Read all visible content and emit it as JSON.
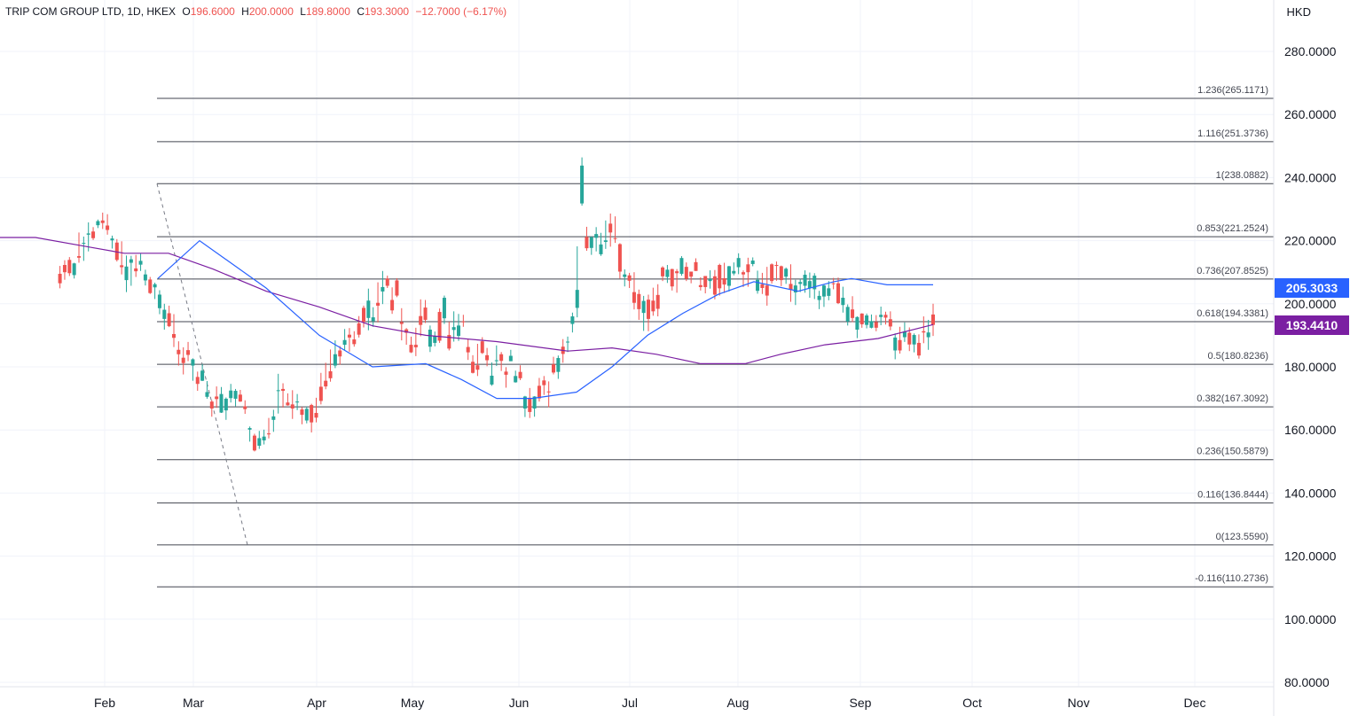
{
  "header": {
    "symbol": "TRIP COM GROUP LTD, 1D, HKEX",
    "open_label": "O",
    "open": "196.6000",
    "high_label": "H",
    "high": "200.0000",
    "low_label": "L",
    "low": "189.8000",
    "close_label": "C",
    "close": "193.3000",
    "change": "−12.7000 (−6.17%)"
  },
  "currency": "HKD",
  "badges": {
    "ma_fast": {
      "value": "205.3033",
      "color": "#2962ff"
    },
    "ma_slow": {
      "value": "193.4410",
      "color": "#7b1fa2"
    }
  },
  "colors": {
    "up": "#26a69a",
    "down": "#ef5350",
    "ma_fast": "#2962ff",
    "ma_slow": "#7b1fa2",
    "fib": "#434651",
    "grid": "#f0f3fa"
  },
  "chart_data": {
    "type": "candlestick",
    "ylim": [
      80,
      290
    ],
    "y_ticks": [
      "280.0000",
      "260.0000",
      "240.0000",
      "220.0000",
      "200.0000",
      "180.0000",
      "160.0000",
      "140.0000",
      "120.0000",
      "100.0000",
      "80.0000"
    ],
    "x_ticks": [
      "Feb",
      "Mar",
      "Apr",
      "May",
      "Jun",
      "Jul",
      "Aug",
      "Sep",
      "Oct",
      "Nov",
      "Dec"
    ],
    "fib_levels": [
      {
        "label": "1.236(265.1171)",
        "value": 265.1171
      },
      {
        "label": "1.116(251.3736)",
        "value": 251.3736
      },
      {
        "label": "1(238.0882)",
        "value": 238.0882
      },
      {
        "label": "0.853(221.2524)",
        "value": 221.2524
      },
      {
        "label": "0.736(207.8525)",
        "value": 207.8525
      },
      {
        "label": "0.618(194.3381)",
        "value": 194.3381
      },
      {
        "label": "0.5(180.8236)",
        "value": 180.8236
      },
      {
        "label": "0.382(167.3092)",
        "value": 167.3092
      },
      {
        "label": "0.236(150.5879)",
        "value": 150.5879
      },
      {
        "label": "0.116(136.8444)",
        "value": 136.8444
      },
      {
        "label": "0(123.5590)",
        "value": 123.559
      },
      {
        "label": "-0.116(110.2736)",
        "value": 110.2736
      }
    ],
    "trend_line": {
      "from": 238.0882,
      "to": 123.559
    },
    "ma_fast_anchors": [
      [
        178,
        208
      ],
      [
        225,
        220
      ],
      [
        300,
        205
      ],
      [
        360,
        190
      ],
      [
        420,
        180
      ],
      [
        480,
        181
      ],
      [
        520,
        176
      ],
      [
        560,
        170
      ],
      [
        600,
        170
      ],
      [
        650,
        172
      ],
      [
        690,
        180
      ],
      [
        730,
        190
      ],
      [
        770,
        197
      ],
      [
        810,
        203
      ],
      [
        850,
        207
      ],
      [
        900,
        204
      ],
      [
        940,
        207
      ],
      [
        960,
        208
      ],
      [
        1000,
        206
      ],
      [
        1052,
        206
      ]
    ],
    "ma_slow_anchors": [
      [
        0,
        221
      ],
      [
        40,
        221
      ],
      [
        100,
        218
      ],
      [
        140,
        216
      ],
      [
        190,
        216
      ],
      [
        240,
        211
      ],
      [
        300,
        204
      ],
      [
        360,
        199
      ],
      [
        420,
        193
      ],
      [
        480,
        190
      ],
      [
        560,
        188
      ],
      [
        640,
        185
      ],
      [
        690,
        186
      ],
      [
        740,
        184
      ],
      [
        790,
        181
      ],
      [
        840,
        181
      ],
      [
        880,
        184
      ],
      [
        930,
        187
      ],
      [
        990,
        189
      ],
      [
        1052,
        193.4
      ]
    ],
    "candles": [
      [
        196.6,
        200.0,
        189.8,
        193.3
      ],
      [
        189.4,
        194.9,
        185.4,
        190.9
      ],
      [
        191.3,
        196.0,
        187.5,
        190.9
      ],
      [
        187.6,
        190.3,
        182.6,
        183.6
      ],
      [
        187.1,
        190.6,
        184.6,
        190.1
      ],
      [
        190.8,
        192.5,
        185.0,
        187.1
      ],
      [
        189.4,
        194.1,
        187.9,
        191.2
      ],
      [
        188.5,
        192.7,
        184.2,
        185.2
      ],
      [
        185.2,
        190.6,
        182.4,
        189.3
      ],
      [
        195.1,
        197.6,
        191.6,
        192.8
      ],
      [
        196.5,
        197.5,
        193.4,
        195.6
      ],
      [
        195.8,
        199.1,
        193.2,
        196.5
      ],
      [
        194.2,
        196.4,
        191.3,
        192.4
      ],
      [
        192.4,
        196.6,
        192.2,
        194.5
      ],
      [
        193.3,
        196.9,
        192.2,
        196.3
      ],
      [
        196.9,
        197.0,
        192.4,
        193.5
      ],
      [
        191.8,
        196.0,
        189.1,
        195.8
      ],
      [
        198.2,
        202.4,
        194.2,
        195.5
      ],
      [
        194.4,
        199.8,
        193.1,
        199.0
      ],
      [
        199.6,
        205.4,
        197.2,
        201.9
      ],
      [
        206.5,
        208.3,
        199.9,
        200.2
      ],
      [
        206.5,
        208.2,
        204.6,
        206.3
      ],
      [
        202.5,
        207.2,
        201.1,
        204.9
      ],
      [
        202.3,
        206.1,
        199.0,
        205.8
      ],
      [
        201.2,
        204.1,
        198.3,
        202.5
      ],
      [
        204.6,
        209.7,
        201.5,
        208.9
      ],
      [
        205.0,
        209.9,
        201.9,
        207.2
      ],
      [
        205.7,
        210.6,
        203.5,
        209.2
      ],
      [
        206.3,
        207.9,
        203.7,
        206.9
      ],
      [
        203.6,
        207.6,
        199.6,
        205.8
      ],
      [
        206.3,
        212.5,
        200.6,
        204.4
      ],
      [
        208.6,
        211.5,
        206.3,
        211.1
      ],
      [
        211.9,
        212.1,
        205.6,
        207.5
      ],
      [
        212.3,
        213.4,
        207.3,
        212.0
      ],
      [
        212.5,
        212.8,
        206.4,
        207.2
      ],
      [
        205.8,
        211.7,
        199.4,
        202.6
      ],
      [
        206.2,
        209.8,
        203.1,
        205.0
      ],
      [
        204.1,
        210.5,
        203.2,
        207.6
      ],
      [
        212.6,
        214.7,
        211.9,
        213.7
      ],
      [
        212.5,
        214.6,
        205.4,
        210.0
      ],
      [
        210.0,
        210.6,
        205.3,
        209.3
      ],
      [
        211.6,
        216.0,
        209.4,
        214.5
      ],
      [
        209.6,
        213.1,
        209.0,
        210.4
      ],
      [
        205.7,
        212.0,
        203.9,
        211.9
      ],
      [
        208.1,
        213.0,
        203.4,
        206.1
      ],
      [
        212.3,
        212.7,
        202.6,
        204.9
      ],
      [
        208.7,
        210.7,
        201.4,
        202.9
      ],
      [
        207.2,
        210.6,
        204.8,
        207.8
      ],
      [
        208.8,
        208.8,
        203.3,
        205.3
      ],
      [
        205.9,
        208.4,
        204.2,
        205.3
      ],
      [
        213.2,
        214.4,
        210.4,
        210.4
      ],
      [
        210.2,
        210.2,
        206.5,
        208.6
      ],
      [
        211.7,
        213.1,
        207.2,
        207.9
      ],
      [
        209.5,
        215.1,
        208.9,
        214.5
      ],
      [
        210.3,
        211.0,
        203.5,
        209.7
      ],
      [
        211.0,
        211.1,
        204.2,
        205.5
      ],
      [
        208.5,
        212.3,
        206.6,
        210.8
      ],
      [
        211.5,
        211.9,
        207.2,
        208.7
      ],
      [
        202.8,
        206.2,
        196.0,
        198.4
      ],
      [
        201.0,
        205.1,
        196.2,
        197.6
      ],
      [
        201.3,
        202.9,
        191.3,
        195.2
      ],
      [
        197.1,
        202.5,
        191.4,
        200.9
      ],
      [
        203.1,
        204.5,
        194.9,
        198.3
      ],
      [
        203.7,
        210.0,
        198.2,
        200.3
      ],
      [
        209.0,
        209.8,
        205.0,
        207.3
      ],
      [
        208.5,
        210.9,
        205.5,
        209.3
      ],
      [
        218.9,
        219.2,
        208.0,
        210.2
      ],
      [
        220.8,
        227.7,
        219.3,
        220.6
      ],
      [
        225.4,
        228.6,
        218.1,
        222.6
      ],
      [
        219.6,
        226.4,
        217.4,
        220.1
      ],
      [
        215.7,
        222.5,
        215.2,
        218.8
      ],
      [
        220.9,
        224.3,
        216.6,
        222.1
      ],
      [
        217.7,
        221.4,
        215.5,
        221.1
      ],
      [
        221.2,
        224.4,
        216.8,
        217.6
      ],
      [
        231.8,
        246.4,
        231.1,
        243.8
      ],
      [
        198.7,
        218.2,
        195.7,
        204.4
      ],
      [
        193.6,
        197.2,
        190.9,
        196.0
      ],
      [
        188.0,
        189.6,
        184.7,
        188.0
      ],
      [
        186.4,
        188.8,
        181.3,
        184.1
      ],
      [
        178.4,
        183.6,
        176.2,
        182.8
      ],
      [
        180.8,
        183.2,
        177.6,
        178.2
      ],
      [
        172.2,
        175.4,
        167.2,
        172.1
      ],
      [
        175.7,
        177.1,
        171.1,
        174.2
      ],
      [
        174.0,
        176.5,
        169.0,
        170.0
      ],
      [
        166.8,
        170.7,
        164.2,
        170.6
      ],
      [
        170.2,
        173.3,
        163.8,
        165.7
      ],
      [
        166.8,
        170.8,
        164.1,
        170.6
      ],
      [
        178.4,
        180.5,
        175.8,
        176.4
      ],
      [
        175.1,
        178.8,
        175.0,
        177.1
      ],
      [
        181.8,
        185.4,
        181.8,
        183.5
      ],
      [
        178.5,
        179.9,
        173.4,
        177.5
      ],
      [
        184.0,
        184.7,
        178.7,
        181.9
      ],
      [
        182.0,
        186.8,
        180.3,
        182.1
      ],
      [
        174.4,
        181.4,
        174.0,
        177.2
      ],
      [
        183.7,
        186.0,
        180.2,
        182.1
      ],
      [
        188.1,
        189.4,
        184.1,
        184.4
      ],
      [
        180.5,
        187.3,
        177.1,
        179.1
      ],
      [
        181.6,
        183.7,
        177.9,
        178.1
      ],
      [
        186.3,
        188.8,
        182.2,
        184.6
      ],
      [
        194.4,
        196.5,
        192.7,
        194.2
      ],
      [
        189.8,
        196.8,
        188.2,
        193.1
      ],
      [
        191.7,
        197.6,
        188.0,
        192.6
      ],
      [
        190.1,
        194.3,
        185.2,
        185.8
      ],
      [
        195.4,
        202.6,
        193.6,
        201.9
      ],
      [
        197.4,
        198.5,
        187.6,
        188.3
      ],
      [
        187.6,
        191.2,
        186.5,
        189.8
      ],
      [
        186.4,
        193.1,
        184.7,
        191.8
      ],
      [
        198.8,
        201.2,
        193.9,
        194.9
      ],
      [
        196.1,
        201.4,
        189.7,
        193.3
      ],
      [
        187.0,
        192.4,
        183.4,
        186.2
      ],
      [
        187.0,
        189.6,
        184.4,
        184.6
      ],
      [
        191.9,
        192.3,
        187.0,
        190.8
      ],
      [
        194.2,
        198.6,
        188.4,
        193.6
      ],
      [
        207.4,
        208.1,
        202.1,
        202.6
      ],
      [
        201.2,
        205.2,
        196.8,
        197.9
      ],
      [
        208.0,
        208.9,
        205.0,
        205.7
      ],
      [
        203.9,
        210.4,
        199.9,
        205.3
      ],
      [
        200.3,
        206.8,
        194.1,
        199.4
      ],
      [
        194.5,
        198.9,
        192.7,
        195.7
      ],
      [
        195.5,
        204.8,
        191.6,
        201.0
      ],
      [
        198.7,
        199.4,
        192.5,
        194.2
      ],
      [
        193.8,
        196.1,
        189.3,
        190.2
      ],
      [
        188.7,
        191.3,
        186.4,
        187.2
      ],
      [
        190.2,
        192.3,
        184.8,
        189.3
      ],
      [
        187.0,
        192.0,
        185.3,
        188.5
      ],
      [
        185.2,
        186.6,
        180.7,
        183.3
      ],
      [
        180.4,
        188.4,
        179.6,
        184.0
      ],
      [
        178.6,
        185.5,
        175.3,
        176.4
      ],
      [
        175.6,
        181.3,
        172.9,
        173.8
      ],
      [
        173.7,
        178.1,
        168.1,
        169.2
      ],
      [
        165.4,
        170.2,
        162.4,
        163.9
      ],
      [
        167.9,
        168.3,
        159.2,
        162.4
      ],
      [
        163.0,
        167.4,
        162.1,
        166.7
      ],
      [
        166.5,
        167.3,
        161.8,
        164.8
      ],
      [
        169.0,
        171.4,
        166.3,
        169.0
      ],
      [
        168.1,
        172.6,
        163.5,
        166.8
      ],
      [
        168.7,
        171.6,
        167.7,
        167.8
      ],
      [
        173.0,
        174.8,
        167.1,
        172.4
      ],
      [
        172.4,
        177.8,
        165.2,
        172.6
      ],
      [
        163.2,
        166.4,
        159.4,
        164.3
      ],
      [
        158.9,
        163.8,
        157.3,
        158.6
      ],
      [
        156.7,
        160.1,
        155.4,
        157.9
      ],
      [
        155.0,
        159.7,
        154.0,
        157.4
      ],
      [
        158.2,
        158.8,
        153.2,
        153.5
      ],
      [
        160.1,
        161.1,
        156.3,
        160.6
      ],
      [
        167.5,
        169.4,
        165.1,
        166.6
      ],
      [
        171.2,
        172.7,
        168.9,
        169.0
      ],
      [
        169.9,
        173.0,
        167.5,
        172.4
      ],
      [
        170.1,
        174.6,
        168.7,
        172.5
      ],
      [
        166.2,
        170.3,
        163.2,
        169.9
      ],
      [
        165.5,
        173.6,
        165.4,
        171.4
      ],
      [
        170.6,
        173.8,
        167.0,
        169.8
      ],
      [
        169.0,
        169.5,
        164.2,
        166.8
      ],
      [
        170.5,
        175.5,
        169.9,
        172.0
      ],
      [
        175.6,
        180.9,
        175.5,
        178.8
      ],
      [
        176.8,
        178.5,
        172.4,
        174.6
      ],
      [
        180.4,
        182.7,
        175.6,
        182.4
      ],
      [
        185.3,
        187.9,
        181.8,
        183.8
      ],
      [
        182.9,
        186.2,
        177.6,
        181.2
      ],
      [
        185.4,
        188.1,
        180.4,
        184.0
      ],
      [
        190.4,
        196.7,
        186.3,
        189.2
      ],
      [
        197.0,
        199.4,
        192.6,
        192.9
      ],
      [
        195.2,
        200.0,
        191.8,
        198.1
      ],
      [
        198.6,
        204.3,
        196.7,
        202.9
      ],
      [
        205.2,
        206.7,
        201.5,
        206.2
      ],
      [
        207.7,
        208.5,
        203.1,
        203.4
      ],
      [
        207.4,
        210.8,
        205.8,
        209.3
      ],
      [
        212.4,
        215.9,
        210.4,
        213.6
      ],
      [
        211.2,
        215.5,
        208.5,
        210.3
      ],
      [
        213.0,
        215.2,
        205.7,
        214.1
      ],
      [
        207.5,
        215.3,
        203.7,
        211.8
      ],
      [
        212.2,
        219.8,
        209.3,
        211.6
      ],
      [
        219.4,
        220.5,
        213.4,
        213.9
      ],
      [
        220.1,
        221.6,
        217.5,
        220.7
      ],
      [
        224.8,
        228.4,
        221.9,
        223.4
      ],
      [
        226.4,
        228.9,
        223.7,
        225.6
      ],
      [
        224.9,
        226.7,
        224.0,
        226.2
      ],
      [
        222.9,
        224.3,
        220.2,
        220.8
      ],
      [
        221.9,
        225.8,
        216.6,
        222.3
      ],
      [
        219.2,
        221.3,
        213.6,
        219.3
      ],
      [
        215.1,
        222.6,
        213.0,
        214.6
      ],
      [
        209.1,
        213.0,
        208.0,
        212.8
      ],
      [
        213.9,
        214.8,
        208.8,
        209.7
      ],
      [
        212.3,
        213.8,
        207.6,
        210.0
      ],
      [
        209.5,
        212.0,
        204.9,
        206.5
      ]
    ]
  }
}
